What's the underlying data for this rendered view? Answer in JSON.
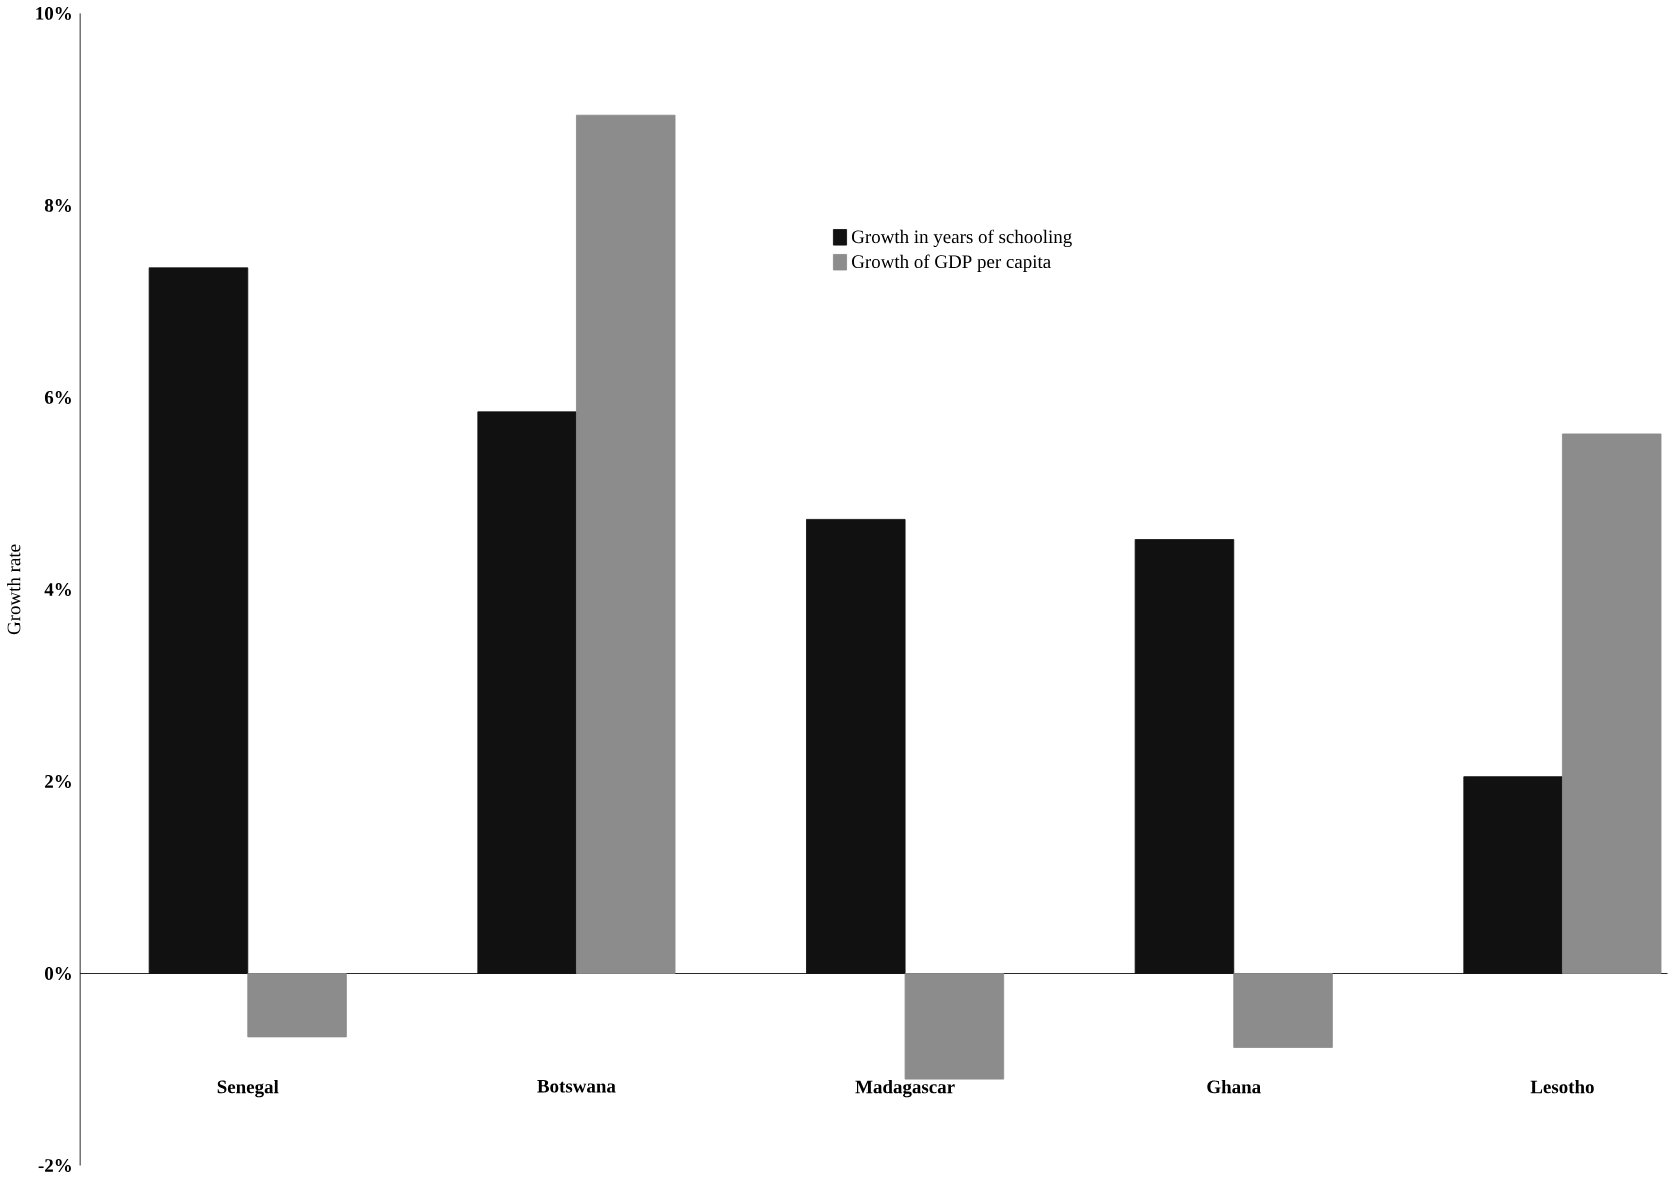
{
  "chart_data": {
    "type": "bar",
    "ylabel": "Growth rate",
    "categories": [
      "Senegal",
      "Botswana",
      "Madagascar",
      "Ghana",
      "Lesotho"
    ],
    "series": [
      {
        "name": "Growth in years of schooling",
        "color": "#111111",
        "values": [
          7.35,
          5.85,
          4.73,
          4.52,
          2.05
        ]
      },
      {
        "name": "Growth of GDP per capita",
        "color": "#8c8c8c",
        "values": [
          -0.66,
          8.94,
          -1.1,
          -0.77,
          5.62
        ]
      }
    ],
    "ylim": [
      -2,
      10
    ],
    "yticks": [
      {
        "value": -2,
        "label": "-2%"
      },
      {
        "value": 0,
        "label": "0%"
      },
      {
        "value": 2,
        "label": "2%"
      },
      {
        "value": 4,
        "label": "4%"
      },
      {
        "value": 6,
        "label": "6%"
      },
      {
        "value": 8,
        "label": "8%"
      },
      {
        "value": 10,
        "label": "10%"
      }
    ],
    "ref_lines": [
      {
        "axis": "y",
        "value": 0
      }
    ],
    "legend": "top right"
  }
}
